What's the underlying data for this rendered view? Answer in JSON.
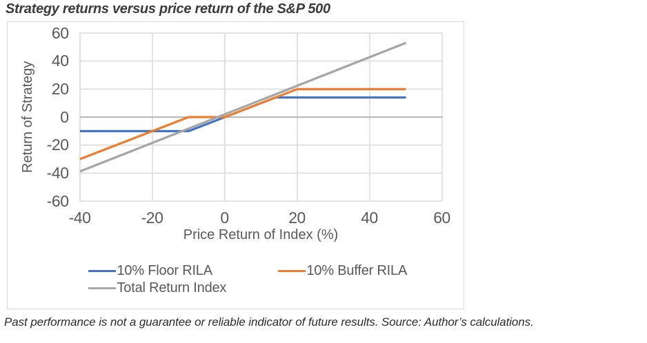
{
  "figure": {
    "title": "Strategy returns versus price return of the S&P 500",
    "footnote": "Past performance is not a guarantee or reliable indicator of future results. Source: Author’s calculations."
  },
  "chart_data": {
    "type": "line",
    "title": "Strategy returns versus price return of the S&P 500",
    "xlabel": "Price Return of Index (%)",
    "ylabel": "Return of Strategy",
    "xlim": [
      -40,
      60
    ],
    "ylim": [
      -60,
      60
    ],
    "x_ticks": [
      -40,
      -20,
      0,
      20,
      40,
      60
    ],
    "y_ticks": [
      60,
      40,
      20,
      0,
      -20,
      -40,
      -60
    ],
    "grid": true,
    "legend_position": "bottom-left",
    "series": [
      {
        "name": "10% Floor RILA",
        "color": "#4472C4",
        "points": [
          [
            -40,
            -10
          ],
          [
            -10,
            -10
          ],
          [
            14,
            14
          ],
          [
            50,
            14
          ]
        ]
      },
      {
        "name": "10% Buffer RILA",
        "color": "#ED7D31",
        "points": [
          [
            -40,
            -30
          ],
          [
            -10,
            0
          ],
          [
            0,
            0
          ],
          [
            20,
            20
          ],
          [
            50,
            20
          ]
        ]
      },
      {
        "name": "Total Return Index",
        "color": "#A5A5A5",
        "points": [
          [
            -40,
            -38.8
          ],
          [
            50,
            53
          ]
        ]
      }
    ],
    "styles": {
      "grid_color": "#D9D9D9",
      "zero_axis_color": "#ADADAD",
      "tick_text_color": "#595959",
      "title_color": "#3B3B3B"
    }
  }
}
